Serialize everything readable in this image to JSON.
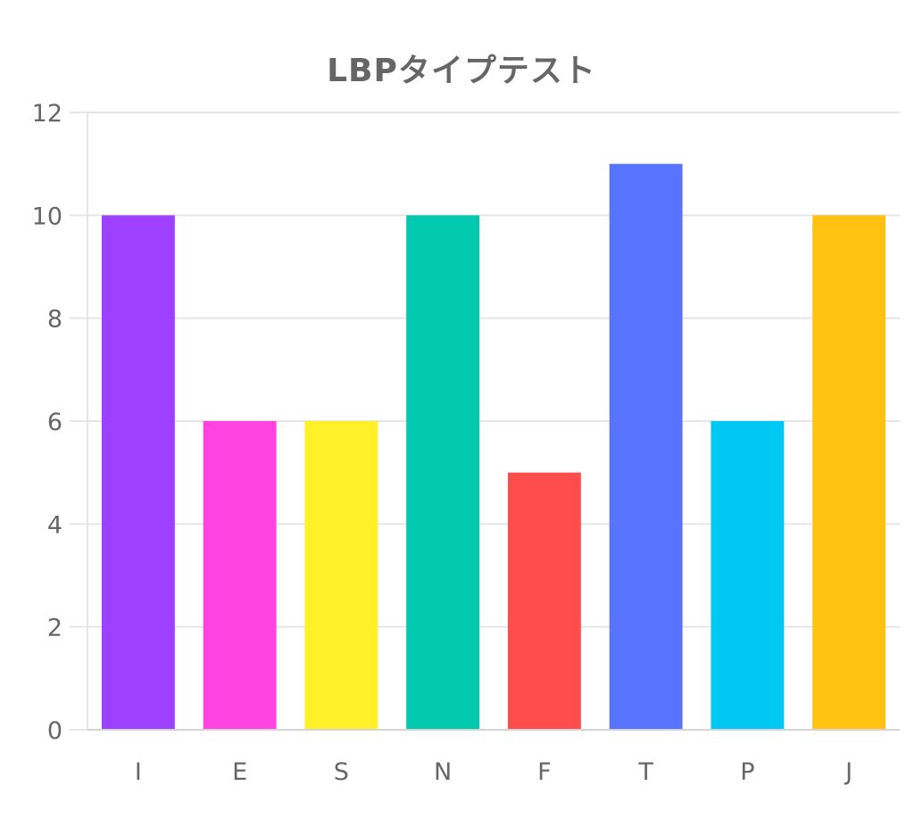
{
  "chart_data": {
    "type": "bar",
    "title": "LBPタイプテスト",
    "xlabel": "",
    "ylabel": "",
    "categories": [
      "I",
      "E",
      "S",
      "N",
      "F",
      "T",
      "P",
      "J"
    ],
    "values": [
      10,
      6,
      6,
      10,
      5,
      11,
      6,
      10
    ],
    "colors": [
      "#9E40FF",
      "#FF43E0",
      "#FFF02A",
      "#00C9AE",
      "#FF4D4E",
      "#5874FF",
      "#00C8F2",
      "#FFC210"
    ],
    "ylim": [
      0,
      12
    ],
    "yticks": [
      0,
      2,
      4,
      6,
      8,
      10,
      12
    ],
    "grid": true,
    "legend": "none",
    "grid_color": "#E5E5E5",
    "axis_color": "#D4D4D4",
    "text_color": "#666666"
  }
}
